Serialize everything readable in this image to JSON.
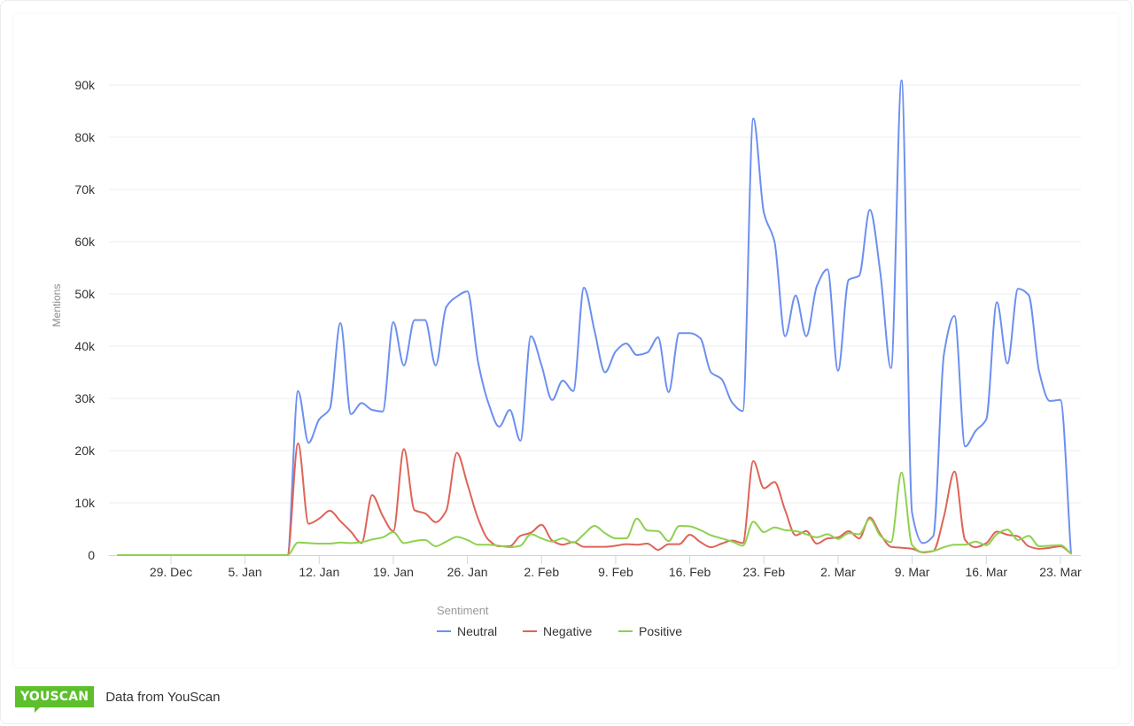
{
  "footer": {
    "brand": "YOUSCAN",
    "source_text": "Data from YouScan"
  },
  "colors": {
    "neutral": "#6c8ff0",
    "negative": "#de6457",
    "positive": "#8fd14f",
    "brand_green": "#5dbf2c",
    "grid": "#eeeeee",
    "axis": "#ccd6eb"
  },
  "chart_data": {
    "type": "line",
    "title": "",
    "xlabel": "",
    "ylabel": "Mentions",
    "ylim": [
      0,
      90000
    ],
    "y_ticks": [
      0,
      10000,
      20000,
      30000,
      40000,
      50000,
      60000,
      70000,
      80000,
      90000
    ],
    "y_tick_labels": [
      "0",
      "10k",
      "20k",
      "30k",
      "40k",
      "50k",
      "60k",
      "70k",
      "80k",
      "90k"
    ],
    "grid": true,
    "x_start_date": "24. Dec",
    "x_unit": "day",
    "x_ticks": [
      {
        "day": 5,
        "label": "29. Dec"
      },
      {
        "day": 12,
        "label": "5. Jan"
      },
      {
        "day": 19,
        "label": "12. Jan"
      },
      {
        "day": 26,
        "label": "19. Jan"
      },
      {
        "day": 33,
        "label": "26. Jan"
      },
      {
        "day": 40,
        "label": "2. Feb"
      },
      {
        "day": 47,
        "label": "9. Feb"
      },
      {
        "day": 54,
        "label": "16. Feb"
      },
      {
        "day": 61,
        "label": "23. Feb"
      },
      {
        "day": 68,
        "label": "2. Mar"
      },
      {
        "day": 75,
        "label": "9. Mar"
      },
      {
        "day": 82,
        "label": "16. Mar"
      },
      {
        "day": 89,
        "label": "23. Mar"
      }
    ],
    "legend": {
      "title": "Sentiment",
      "position": "bottom-center"
    },
    "series": [
      {
        "name": "Neutral",
        "color": "#6c8ff0",
        "values_k": [
          0,
          0,
          0,
          0,
          0,
          0,
          0,
          0,
          0,
          0,
          0,
          0,
          0,
          0,
          0,
          0,
          0,
          31.4,
          21.5,
          26,
          28,
          44.4,
          27,
          29.1,
          27.8,
          27.5,
          44.6,
          36.3,
          45,
          45,
          36.3,
          47.5,
          49.5,
          50.5,
          37,
          29,
          24.6,
          27.8,
          21.9,
          41.9,
          36.3,
          29.7,
          33.4,
          31.4,
          51.2,
          43,
          35,
          39,
          40.5,
          38.3,
          38.8,
          41.7,
          31.2,
          42.5,
          42.5,
          41.5,
          35,
          33.7,
          29.2,
          27.6,
          83.6,
          65.5,
          60,
          41.9,
          49.7,
          41.9,
          51.5,
          54.7,
          35.3,
          52.7,
          53.5,
          66.1,
          54,
          35.8,
          90.9,
          8,
          2.3,
          3.7,
          38.5,
          45.8,
          20.8,
          23.8,
          26,
          48.4,
          36.7,
          51,
          49.8,
          35.1,
          29.5,
          29.7,
          0.3
        ]
      },
      {
        "name": "Negative",
        "color": "#de6457",
        "values_k": [
          0,
          0,
          0,
          0,
          0,
          0,
          0,
          0,
          0,
          0,
          0,
          0,
          0,
          0,
          0,
          0,
          0,
          21.4,
          6,
          7,
          8.5,
          6.5,
          4.5,
          2.3,
          11.5,
          7.5,
          4.6,
          20.3,
          8.6,
          8,
          6.3,
          8.5,
          19.6,
          13.6,
          7,
          2.9,
          1.7,
          1.7,
          3.7,
          4.3,
          5.8,
          2.8,
          2,
          2.5,
          1.6,
          1.6,
          1.6,
          1.8,
          2.1,
          2,
          2.2,
          1,
          2.1,
          2.1,
          3.9,
          2.5,
          1.5,
          2.2,
          2.8,
          2.3,
          18,
          12.8,
          14,
          8.6,
          3.8,
          4.6,
          2.2,
          3.2,
          3.4,
          4.6,
          3.2,
          7.2,
          4,
          1.6,
          1.4,
          1.2,
          0.5,
          0.8,
          7.4,
          16,
          2.9,
          1.5,
          2.3,
          4.5,
          3.9,
          3.6,
          1.7,
          1.2,
          1.4,
          1.7,
          0.3
        ]
      },
      {
        "name": "Positive",
        "color": "#8fd14f",
        "values_k": [
          0,
          0,
          0,
          0,
          0,
          0,
          0,
          0,
          0,
          0,
          0,
          0,
          0,
          0,
          0,
          0,
          0,
          2.4,
          2.3,
          2.2,
          2.2,
          2.4,
          2.3,
          2.5,
          3,
          3.4,
          4.4,
          2.3,
          2.7,
          2.9,
          1.7,
          2.6,
          3.5,
          2.9,
          2,
          2,
          1.8,
          1.5,
          1.8,
          4,
          3.2,
          2.6,
          3.2,
          2.4,
          4,
          5.6,
          4.2,
          3.2,
          3.2,
          7,
          4.7,
          4.6,
          2.7,
          5.6,
          5.5,
          4.8,
          3.8,
          3.2,
          2.6,
          1.8,
          6.4,
          4.4,
          5.3,
          4.8,
          4.6,
          4,
          3.4,
          4,
          3.1,
          4.2,
          4,
          6.9,
          3.7,
          2.5,
          15.8,
          1.9,
          0.6,
          0.8,
          1.5,
          2,
          2,
          2.6,
          1.9,
          4,
          4.9,
          2.9,
          3.7,
          1.7,
          1.8,
          1.9,
          0.3
        ]
      }
    ]
  }
}
